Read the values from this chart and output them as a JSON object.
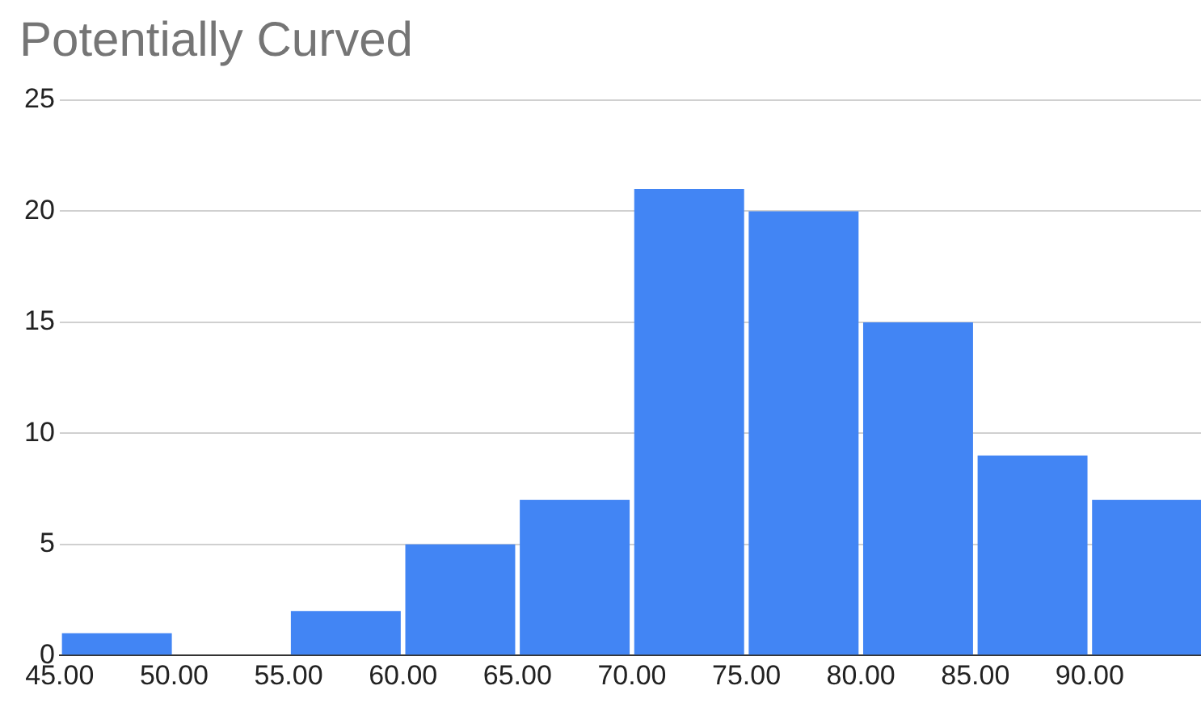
{
  "chart_data": {
    "type": "histogram",
    "title": "Potentially Curved",
    "bins": [
      45,
      50,
      55,
      60,
      65,
      70,
      75,
      80,
      85,
      90,
      95
    ],
    "values": [
      1,
      0,
      2,
      5,
      7,
      21,
      20,
      15,
      9,
      7
    ],
    "color": "#4285f4",
    "xlim": [
      45,
      95
    ],
    "xticks": [
      {
        "value": 45,
        "label": "45.00"
      },
      {
        "value": 50,
        "label": "50.00"
      },
      {
        "value": 55,
        "label": "55.00"
      },
      {
        "value": 60,
        "label": "60.00"
      },
      {
        "value": 65,
        "label": "65.00"
      },
      {
        "value": 70,
        "label": "70.00"
      },
      {
        "value": 75,
        "label": "75.00"
      },
      {
        "value": 80,
        "label": "80.00"
      },
      {
        "value": 85,
        "label": "85.00"
      },
      {
        "value": 90,
        "label": "90.00"
      }
    ],
    "ylim": [
      0,
      25
    ],
    "yticks": [
      0,
      5,
      10,
      15,
      20,
      25
    ],
    "grid": "y",
    "legend": false
  }
}
